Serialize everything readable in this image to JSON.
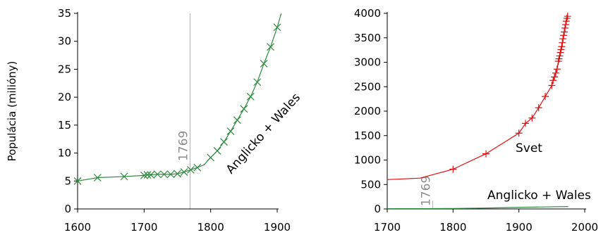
{
  "chart_data": [
    {
      "type": "line",
      "title": "",
      "xlabel": "",
      "ylabel": "Populácia (milióny)",
      "xlim": [
        1600,
        1900
      ],
      "ylim": [
        0,
        35
      ],
      "x_ticks": [
        1600,
        1700,
        1800,
        1900
      ],
      "y_ticks": [
        0,
        5,
        10,
        15,
        20,
        25,
        30,
        35
      ],
      "grid": false,
      "marker": "x",
      "color": "#2e8b3e",
      "vline": {
        "x": 1769,
        "label": "1769",
        "color": "#b0b0b0"
      },
      "series": [
        {
          "name": "Anglicko + Wales",
          "x": [
            1600,
            1630,
            1670,
            1700,
            1705,
            1710,
            1720,
            1730,
            1740,
            1750,
            1760,
            1770,
            1780,
            1790,
            1800,
            1810,
            1820,
            1830,
            1840,
            1850,
            1860,
            1870,
            1880,
            1890,
            1900,
            1906
          ],
          "values": [
            5.0,
            5.6,
            5.8,
            6.0,
            6.1,
            6.1,
            6.2,
            6.2,
            6.2,
            6.3,
            6.6,
            7.0,
            7.4,
            7.9,
            9.2,
            10.4,
            12.0,
            13.9,
            15.9,
            17.9,
            20.1,
            22.7,
            26.0,
            29.0,
            32.5,
            35.0
          ],
          "markers": [
            true,
            true,
            true,
            true,
            true,
            true,
            true,
            true,
            true,
            true,
            true,
            true,
            true,
            false,
            true,
            true,
            true,
            true,
            true,
            true,
            true,
            true,
            true,
            true,
            true,
            false
          ]
        }
      ]
    },
    {
      "type": "line",
      "title": "",
      "xlabel": "",
      "ylabel": "",
      "xlim": [
        1700,
        2000
      ],
      "ylim": [
        0,
        4000
      ],
      "x_ticks": [
        1700,
        1800,
        1900,
        2000
      ],
      "y_ticks": [
        0,
        500,
        1000,
        1500,
        2000,
        2500,
        3000,
        3500,
        4000
      ],
      "grid": false,
      "vline": {
        "x": 1769,
        "label": "1769",
        "color": "#b0b0b0"
      },
      "series": [
        {
          "name": "Svet",
          "color": "#e01010",
          "marker": "+",
          "x": [
            1700,
            1750,
            1800,
            1850,
            1900,
            1910,
            1920,
            1930,
            1940,
            1950,
            1952,
            1954,
            1956,
            1958,
            1960,
            1961,
            1962,
            1963,
            1964,
            1965,
            1966,
            1967,
            1968,
            1969,
            1970,
            1971,
            1972,
            1973,
            1974
          ],
          "values": [
            600,
            630,
            813,
            1128,
            1550,
            1750,
            1860,
            2070,
            2300,
            2525,
            2630,
            2700,
            2780,
            2860,
            3020,
            3070,
            3130,
            3200,
            3260,
            3320,
            3400,
            3480,
            3550,
            3620,
            3700,
            3770,
            3840,
            3900,
            3940
          ],
          "markers_from_index": 2
        },
        {
          "name": "Anglicko + Wales",
          "color": "#2e8b3e",
          "marker": "none",
          "x": [
            1700,
            1750,
            1800,
            1850,
            1900,
            1950,
            1975
          ],
          "values": [
            6,
            6.3,
            9.2,
            17.9,
            32.5,
            43.8,
            49
          ]
        }
      ]
    }
  ]
}
